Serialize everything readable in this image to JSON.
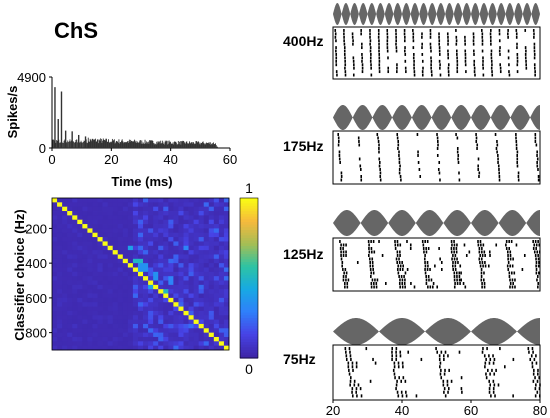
{
  "figure": {
    "title": "ChS"
  },
  "colors": {
    "hist": "#333333",
    "spike": "#000000",
    "envelope": "#666666",
    "colormap": [
      "#3e26a8",
      "#4743e6",
      "#2f80fa",
      "#17a9e3",
      "#2dc3a4",
      "#a4be55",
      "#f6b93d",
      "#f9fb15"
    ]
  },
  "chart_data": [
    {
      "id": "psth",
      "type": "area",
      "ylabel": "Spikes/s",
      "xlabel": "Time (ms)",
      "xlim": [
        0,
        60
      ],
      "ylim": [
        0,
        4900
      ],
      "xticks": [
        0,
        20,
        40,
        60
      ],
      "yticks": [
        0,
        4900
      ],
      "peaks": [
        {
          "t": 1.0,
          "v": 4200
        },
        {
          "t": 2.1,
          "v": 2000
        },
        {
          "t": 3.2,
          "v": 3900
        },
        {
          "t": 4.6,
          "v": 1200
        },
        {
          "t": 6.8,
          "v": 1150
        },
        {
          "t": 9.0,
          "v": 900
        },
        {
          "t": 11.3,
          "v": 800
        }
      ],
      "envelope": [
        [
          12,
          750
        ],
        [
          20,
          650
        ],
        [
          30,
          580
        ],
        [
          40,
          520
        ],
        [
          50,
          470
        ],
        [
          55,
          450
        ],
        [
          56,
          0
        ]
      ]
    },
    {
      "id": "confusion-matrix",
      "type": "heatmap",
      "ylabel": "Classifier choice (Hz)",
      "ylim": [
        25,
        900
      ],
      "yticks": [
        200,
        400,
        600,
        800
      ],
      "colorbar": {
        "range": [
          0,
          1
        ],
        "ticks": [
          0,
          1
        ]
      },
      "diagonal": 1.0,
      "grid_size": 35,
      "elevated_cells": [
        {
          "x": 450,
          "y": 375,
          "v": 0.5
        },
        {
          "x": 475,
          "y": 425,
          "v": 0.35
        },
        {
          "x": 400,
          "y": 300,
          "v": 0.4
        },
        {
          "x": 525,
          "y": 550,
          "v": 0.4
        },
        {
          "x": 700,
          "y": 300,
          "v": 0.3
        },
        {
          "x": 625,
          "y": 500,
          "v": 0.3
        },
        {
          "x": 550,
          "y": 475,
          "v": 0.35
        },
        {
          "x": 600,
          "y": 575,
          "v": 0.5
        }
      ]
    },
    {
      "id": "rasters",
      "type": "scatter",
      "xlim": [
        20,
        80
      ],
      "xticks": [
        20,
        40,
        60,
        80
      ],
      "panels": [
        {
          "label": "400Hz",
          "rate": 400
        },
        {
          "label": "175Hz",
          "rate": 175
        },
        {
          "label": "125Hz",
          "rate": 125
        },
        {
          "label": "75Hz",
          "rate": 75
        }
      ]
    }
  ]
}
